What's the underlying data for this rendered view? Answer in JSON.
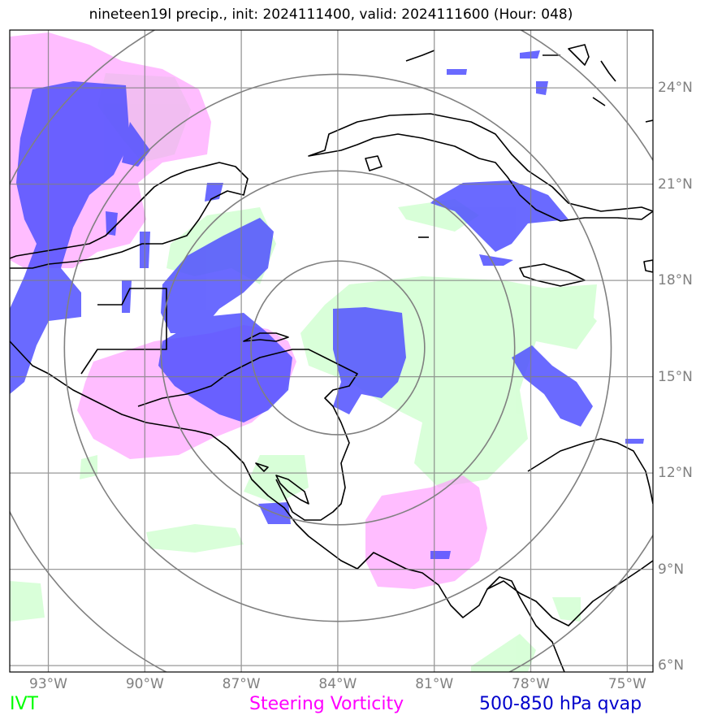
{
  "title": "nineteen19l precip., init: 2024111400, valid: 2024111600 (Hour: 048)",
  "map": {
    "extent_lon": [
      -94.2,
      -74.2
    ],
    "extent_lat": [
      5.8,
      25.8
    ],
    "lon_ticks": [
      {
        "value": -93,
        "label": "93°W"
      },
      {
        "value": -90,
        "label": "90°W"
      },
      {
        "value": -87,
        "label": "87°W"
      },
      {
        "value": -84,
        "label": "84°W"
      },
      {
        "value": -81,
        "label": "81°W"
      },
      {
        "value": -78,
        "label": "78°W"
      },
      {
        "value": -75,
        "label": "75°W"
      }
    ],
    "lat_ticks": [
      {
        "value": 24,
        "label": "24°N"
      },
      {
        "value": 21,
        "label": "21°N"
      },
      {
        "value": 18,
        "label": "18°N"
      },
      {
        "value": 15,
        "label": "15°N"
      },
      {
        "value": 12,
        "label": "12°N"
      },
      {
        "value": 9,
        "label": "9°N"
      },
      {
        "value": 6,
        "label": "6°N"
      }
    ],
    "range_rings_center": {
      "lon": -84.0,
      "lat": 15.9
    },
    "range_ring_radii_deg": [
      2.7,
      5.5,
      8.5,
      11.4
    ],
    "gridlines": true
  },
  "legend": {
    "ivt": {
      "label": "IVT",
      "color": "#00ff00"
    },
    "vorticity": {
      "label": "Steering Vorticity",
      "color": "#ff00ff"
    },
    "qvap": {
      "label": "500-850 hPa qvap",
      "color": "#0000cc"
    }
  },
  "colors": {
    "ivt_fill": "#ccffcc",
    "vorticity_fill": "#ff99ff",
    "qvap_fill": "#5050ff",
    "grid": "#808080",
    "coast": "#000000"
  }
}
